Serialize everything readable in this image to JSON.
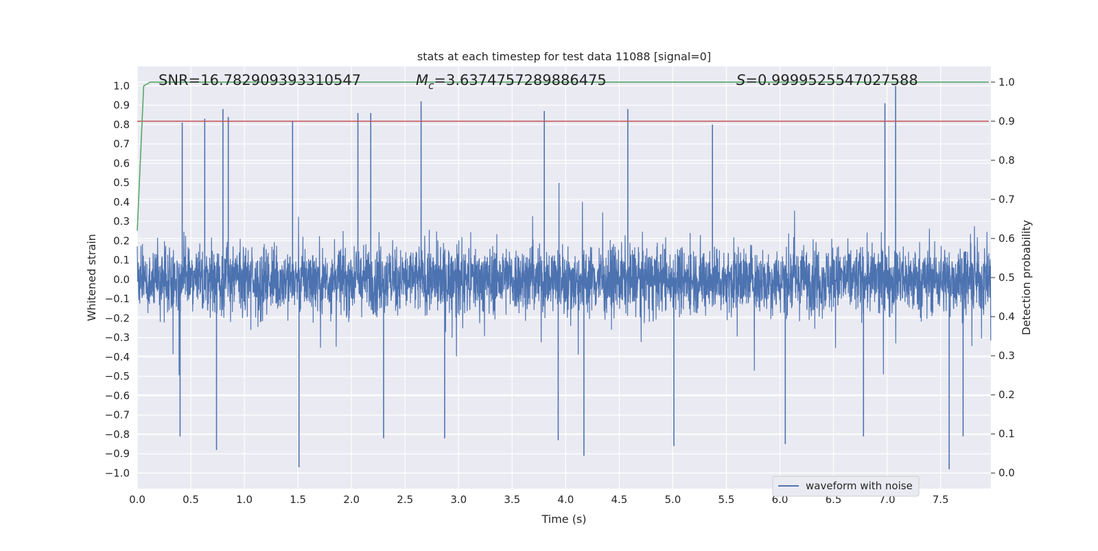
{
  "chart_data": {
    "type": "line",
    "title": "stats at each timestep for test data 11088 [signal=0]",
    "xlabel": "Time (s)",
    "ylabel_left": "Whitened strain",
    "ylabel_right": "Detection probability",
    "xlim": [
      0.0,
      7.97
    ],
    "ylim_left": [
      -1.08,
      1.1
    ],
    "ylim_right": [
      -0.04,
      1.04
    ],
    "x_ticks": [
      0.0,
      0.5,
      1.0,
      1.5,
      2.0,
      2.5,
      3.0,
      3.5,
      4.0,
      4.5,
      5.0,
      5.5,
      6.0,
      6.5,
      7.0,
      7.5
    ],
    "x_tick_labels": [
      "0.0",
      "0.5",
      "1.0",
      "1.5",
      "2.0",
      "2.5",
      "3.0",
      "3.5",
      "4.0",
      "4.5",
      "5.0",
      "5.5",
      "6.0",
      "6.5",
      "7.0",
      "7.5"
    ],
    "y_left_ticks": [
      1.0,
      0.9,
      0.8,
      0.7,
      0.6,
      0.5,
      0.4,
      0.3,
      0.2,
      0.1,
      0.0,
      -0.1,
      -0.2,
      -0.3,
      -0.4,
      -0.5,
      -0.6,
      -0.7,
      -0.8,
      -0.9,
      -1.0
    ],
    "y_left_tick_labels": [
      "1.0",
      "0.9",
      "0.8",
      "0.7",
      "0.6",
      "0.5",
      "0.4",
      "0.3",
      "0.2",
      "0.1",
      "0.0",
      "−0.1",
      "−0.2",
      "−0.3",
      "−0.4",
      "−0.5",
      "−0.6",
      "−0.7",
      "−0.8",
      "−0.9",
      "−1.0"
    ],
    "y_right_ticks": [
      1.0,
      0.9,
      0.8,
      0.7,
      0.6,
      0.5,
      0.4,
      0.3,
      0.2,
      0.1,
      0.0
    ],
    "y_right_tick_labels": [
      "1.0",
      "0.9",
      "0.8",
      "0.7",
      "0.6",
      "0.5",
      "0.4",
      "0.3",
      "0.2",
      "0.1",
      "0.0"
    ],
    "grid": true,
    "legend": {
      "position": "bottom-right",
      "entries": [
        {
          "label": "waveform with noise",
          "color": "#4c72b0"
        }
      ]
    },
    "annotations": {
      "snr": "SNR=16.782909393310547",
      "mc_symbol": "M",
      "mc_sub": "c",
      "mc_value": "=3.6374757289886475",
      "s_symbol": "S",
      "s_value": "=0.9999525547027588"
    },
    "series": [
      {
        "name": "waveform with noise",
        "axis": "left",
        "color": "#4c72b0",
        "description": "dense noisy strain signal, core mostly within ±0.3",
        "sample_rate_hz": 512,
        "duration_s": 7.97,
        "core_amplitude": 0.3,
        "peaks": [
          {
            "x": 0.42,
            "y": 0.81
          },
          {
            "x": 0.63,
            "y": 0.83
          },
          {
            "x": 0.8,
            "y": 0.88
          },
          {
            "x": 0.85,
            "y": 0.84
          },
          {
            "x": 1.45,
            "y": 0.82
          },
          {
            "x": 2.06,
            "y": 0.86
          },
          {
            "x": 2.18,
            "y": 0.86
          },
          {
            "x": 2.65,
            "y": 0.92
          },
          {
            "x": 3.8,
            "y": 0.87
          },
          {
            "x": 4.58,
            "y": 0.88
          },
          {
            "x": 5.37,
            "y": 0.8
          },
          {
            "x": 6.98,
            "y": 0.91
          },
          {
            "x": 7.08,
            "y": 1.0
          },
          {
            "x": 0.4,
            "y": -0.81
          },
          {
            "x": 0.74,
            "y": -0.88
          },
          {
            "x": 1.51,
            "y": -0.97
          },
          {
            "x": 2.3,
            "y": -0.82
          },
          {
            "x": 2.87,
            "y": -0.82
          },
          {
            "x": 3.93,
            "y": -0.83
          },
          {
            "x": 4.17,
            "y": -0.91
          },
          {
            "x": 5.01,
            "y": -0.86
          },
          {
            "x": 6.05,
            "y": -0.85
          },
          {
            "x": 6.78,
            "y": -0.81
          },
          {
            "x": 7.58,
            "y": -0.98
          },
          {
            "x": 7.71,
            "y": -0.81
          }
        ]
      },
      {
        "name": "detection probability",
        "axis": "right",
        "color": "#55a868",
        "x": [
          0.0,
          0.06,
          0.12,
          7.95
        ],
        "y": [
          0.62,
          0.99,
          1.0,
          1.0
        ]
      },
      {
        "name": "threshold",
        "axis": "right",
        "color": "#c44e52",
        "x": [
          0.0,
          7.95
        ],
        "y": [
          0.9,
          0.9
        ]
      }
    ]
  }
}
